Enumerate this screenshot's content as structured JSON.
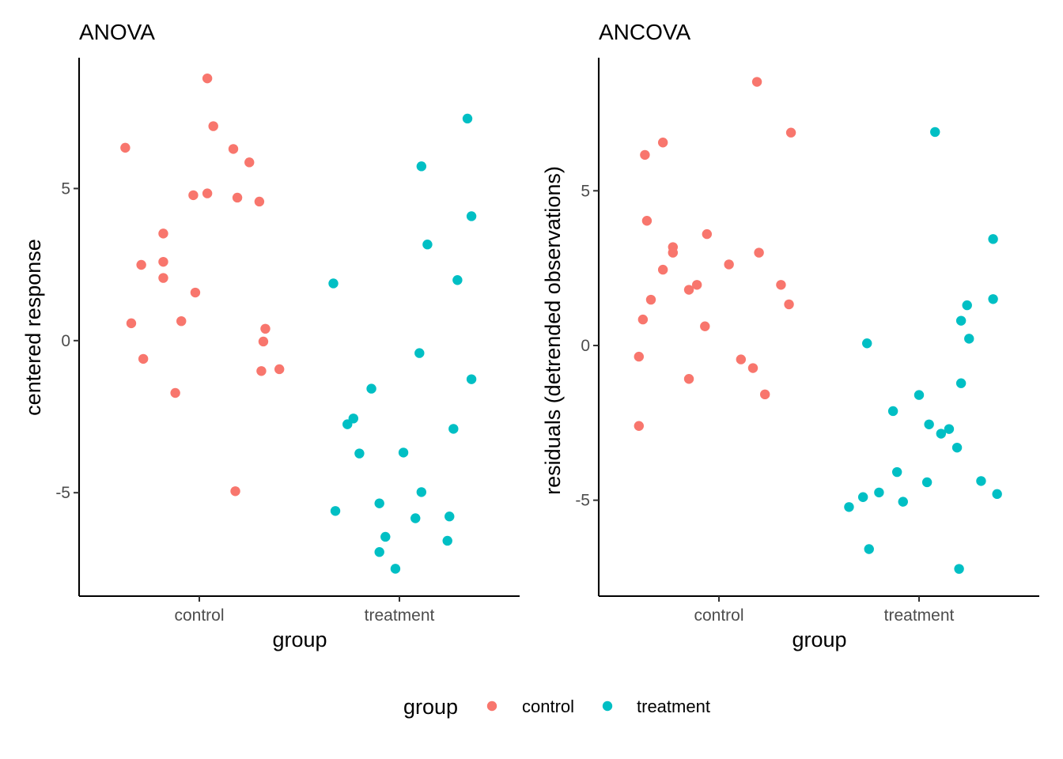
{
  "legend": {
    "title": "group",
    "position": "bottom",
    "entries": [
      {
        "label": "control",
        "color": "#F8766D"
      },
      {
        "label": "treatment",
        "color": "#00BFC4"
      }
    ]
  },
  "chart_data": [
    {
      "type": "scatter",
      "title": "ANOVA",
      "xlabel": "group",
      "ylabel": "centered response",
      "categories": [
        "control",
        "treatment"
      ],
      "ylim": [
        -8.4,
        9.3
      ],
      "yticks": [
        5,
        0,
        -5
      ],
      "ytick_labels": [
        "5",
        "0",
        "-5"
      ],
      "grid": false,
      "jitter": 0.45,
      "series": [
        {
          "name": "control",
          "color": "#F8766D",
          "x": [
            -0.37,
            -0.34,
            -0.29,
            -0.28,
            -0.18,
            -0.18,
            -0.18,
            -0.12,
            -0.09,
            -0.03,
            -0.02,
            0.04,
            0.04,
            0.07,
            0.17,
            0.18,
            0.19,
            0.25,
            0.31,
            0.3,
            0.33,
            0.32,
            0.4
          ],
          "y": [
            6.34,
            0.57,
            2.49,
            -0.6,
            3.52,
            2.59,
            2.06,
            -1.72,
            0.64,
            4.78,
            1.58,
            4.84,
            8.62,
            7.05,
            6.3,
            -4.95,
            4.7,
            5.86,
            -1.0,
            4.57,
            0.39,
            -0.03,
            -0.94
          ]
        },
        {
          "name": "treatment",
          "color": "#00BFC4",
          "x": [
            -0.33,
            -0.32,
            -0.26,
            -0.23,
            -0.2,
            -0.14,
            -0.1,
            -0.1,
            -0.07,
            -0.02,
            0.02,
            0.08,
            0.11,
            0.11,
            0.1,
            0.14,
            0.24,
            0.25,
            0.27,
            0.29,
            0.34,
            0.36,
            0.36
          ],
          "y": [
            1.88,
            -5.6,
            -2.75,
            -2.56,
            -3.71,
            -1.58,
            -6.95,
            -5.35,
            -6.45,
            -7.5,
            -3.68,
            -5.84,
            5.73,
            -4.98,
            -0.41,
            3.16,
            -6.58,
            -5.78,
            -2.9,
            1.99,
            7.3,
            -1.27,
            4.09
          ]
        }
      ]
    },
    {
      "type": "scatter",
      "title": "ANCOVA",
      "xlabel": "group",
      "ylabel": "residuals (detrended observations)",
      "categories": [
        "control",
        "treatment"
      ],
      "ylim": [
        -8.1,
        9.3
      ],
      "yticks": [
        5,
        0,
        -5
      ],
      "ytick_labels": [
        "5",
        "0",
        "-5"
      ],
      "grid": false,
      "jitter": 0.45,
      "series": [
        {
          "name": "control",
          "color": "#F8766D",
          "x": [
            -0.4,
            -0.4,
            -0.38,
            -0.37,
            -0.36,
            -0.34,
            -0.28,
            -0.28,
            -0.23,
            -0.23,
            -0.15,
            -0.15,
            -0.11,
            -0.07,
            -0.06,
            0.05,
            0.11,
            0.17,
            0.19,
            0.2,
            0.23,
            0.31,
            0.35,
            0.36
          ],
          "y": [
            -0.36,
            -2.6,
            0.84,
            6.16,
            4.03,
            1.48,
            6.56,
            2.45,
            3.18,
            3.0,
            1.8,
            -1.08,
            1.96,
            0.62,
            3.6,
            2.62,
            -0.45,
            -0.73,
            8.52,
            3.0,
            -1.58,
            1.96,
            1.33,
            6.88
          ]
        },
        {
          "name": "treatment",
          "color": "#00BFC4",
          "x": [
            -0.35,
            -0.28,
            -0.26,
            -0.25,
            -0.2,
            -0.13,
            -0.11,
            -0.08,
            0.0,
            0.04,
            0.05,
            0.08,
            0.11,
            0.15,
            0.19,
            0.2,
            0.21,
            0.21,
            0.24,
            0.25,
            0.31,
            0.37,
            0.37,
            0.39
          ],
          "y": [
            -5.22,
            -4.9,
            0.07,
            -6.58,
            -4.75,
            -2.12,
            -4.09,
            -5.05,
            -1.6,
            -4.42,
            -2.55,
            6.9,
            -2.85,
            -2.7,
            -3.3,
            -7.22,
            0.8,
            -1.22,
            1.3,
            0.22,
            -4.38,
            3.44,
            1.5,
            -4.8
          ]
        }
      ]
    }
  ]
}
